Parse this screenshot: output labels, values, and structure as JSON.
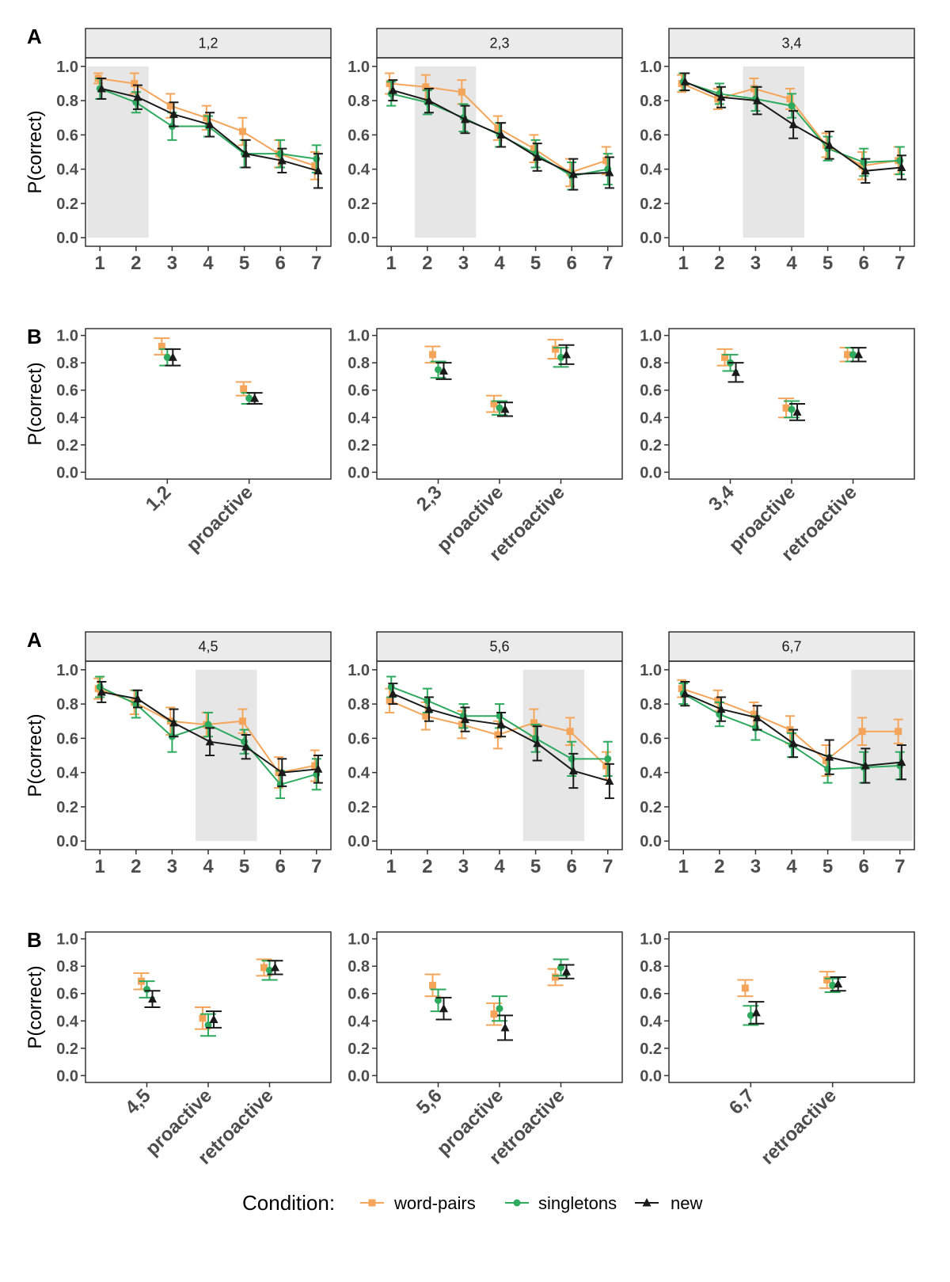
{
  "legend": {
    "title": "Condition:",
    "items": [
      {
        "name": "word-pairs",
        "color": "#F5A55A",
        "shape": "square"
      },
      {
        "name": "singletons",
        "color": "#2DAA5E",
        "shape": "circle"
      },
      {
        "name": "new",
        "color": "#1A1A1A",
        "shape": "triangle"
      }
    ]
  },
  "chart_data": [
    {
      "type": "line",
      "tag": "A",
      "strip": "1,2",
      "ylabel": "P(correct)",
      "x": [
        1,
        2,
        3,
        4,
        5,
        6,
        7
      ],
      "ylim": [
        0,
        1
      ],
      "yticks": [
        "0.0",
        "0.2",
        "0.4",
        "0.6",
        "0.8",
        "1.0"
      ],
      "xticks": [
        "1",
        "2",
        "3",
        "4",
        "5",
        "6",
        "7"
      ],
      "shaded": [
        1,
        2
      ],
      "series": [
        {
          "name": "word-pairs",
          "values": [
            0.93,
            0.9,
            0.77,
            0.7,
            0.62,
            0.49,
            0.42
          ],
          "errors": [
            0.03,
            0.06,
            0.07,
            0.07,
            0.08,
            0.08,
            0.08
          ]
        },
        {
          "name": "singletons",
          "values": [
            0.87,
            0.79,
            0.65,
            0.65,
            0.49,
            0.49,
            0.46
          ],
          "errors": [
            0.06,
            0.06,
            0.08,
            0.06,
            0.08,
            0.08,
            0.08
          ]
        },
        {
          "name": "new",
          "values": [
            0.87,
            0.82,
            0.72,
            0.66,
            0.49,
            0.45,
            0.39
          ],
          "errors": [
            0.06,
            0.07,
            0.07,
            0.07,
            0.08,
            0.07,
            0.1
          ]
        }
      ]
    },
    {
      "type": "line",
      "tag": "",
      "strip": "2,3",
      "ylabel": "",
      "x": [
        1,
        2,
        3,
        4,
        5,
        6,
        7
      ],
      "ylim": [
        0,
        1
      ],
      "yticks": [
        "0.0",
        "0.2",
        "0.4",
        "0.6",
        "0.8",
        "1.0"
      ],
      "xticks": [
        "1",
        "2",
        "3",
        "4",
        "5",
        "6",
        "7"
      ],
      "shaded": [
        2,
        3
      ],
      "series": [
        {
          "name": "word-pairs",
          "values": [
            0.9,
            0.88,
            0.85,
            0.64,
            0.52,
            0.38,
            0.45
          ],
          "errors": [
            0.06,
            0.07,
            0.07,
            0.07,
            0.08,
            0.08,
            0.08
          ]
        },
        {
          "name": "singletons",
          "values": [
            0.84,
            0.79,
            0.7,
            0.6,
            0.49,
            0.36,
            0.4
          ],
          "errors": [
            0.07,
            0.07,
            0.08,
            0.07,
            0.08,
            0.08,
            0.09
          ]
        },
        {
          "name": "new",
          "values": [
            0.86,
            0.8,
            0.69,
            0.6,
            0.47,
            0.37,
            0.38
          ],
          "errors": [
            0.06,
            0.07,
            0.08,
            0.07,
            0.08,
            0.09,
            0.09
          ]
        }
      ]
    },
    {
      "type": "line",
      "tag": "",
      "strip": "3,4",
      "ylabel": "",
      "x": [
        1,
        2,
        3,
        4,
        5,
        6,
        7
      ],
      "ylim": [
        0,
        1
      ],
      "yticks": [
        "0.0",
        "0.2",
        "0.4",
        "0.6",
        "0.8",
        "1.0"
      ],
      "xticks": [
        "1",
        "2",
        "3",
        "4",
        "5",
        "6",
        "7"
      ],
      "shaded": [
        3,
        4
      ],
      "series": [
        {
          "name": "word-pairs",
          "values": [
            0.9,
            0.81,
            0.87,
            0.81,
            0.54,
            0.42,
            0.45
          ],
          "errors": [
            0.05,
            0.06,
            0.06,
            0.06,
            0.07,
            0.08,
            0.08
          ]
        },
        {
          "name": "singletons",
          "values": [
            0.91,
            0.84,
            0.81,
            0.77,
            0.52,
            0.44,
            0.45
          ],
          "errors": [
            0.05,
            0.06,
            0.07,
            0.07,
            0.07,
            0.08,
            0.08
          ]
        },
        {
          "name": "new",
          "values": [
            0.91,
            0.82,
            0.8,
            0.66,
            0.54,
            0.39,
            0.41
          ],
          "errors": [
            0.05,
            0.06,
            0.08,
            0.08,
            0.08,
            0.07,
            0.07
          ]
        }
      ]
    },
    {
      "type": "scatter",
      "tag": "B",
      "ylabel": "P(correct)",
      "ylim": [
        0,
        1
      ],
      "yticks": [
        "0.0",
        "0.2",
        "0.4",
        "0.6",
        "0.8",
        "1.0"
      ],
      "categories": [
        "1,2",
        "proactive"
      ],
      "series": [
        {
          "name": "word-pairs",
          "values": [
            0.92,
            0.61
          ],
          "errors": [
            0.06,
            0.05
          ]
        },
        {
          "name": "singletons",
          "values": [
            0.84,
            0.54
          ],
          "errors": [
            0.06,
            0.04
          ]
        },
        {
          "name": "new",
          "values": [
            0.84,
            0.54
          ],
          "errors": [
            0.06,
            0.04
          ]
        }
      ]
    },
    {
      "type": "scatter",
      "tag": "",
      "ylabel": "",
      "ylim": [
        0,
        1
      ],
      "yticks": [
        "0.0",
        "0.2",
        "0.4",
        "0.6",
        "0.8",
        "1.0"
      ],
      "categories": [
        "2,3",
        "proactive",
        "retroactive"
      ],
      "series": [
        {
          "name": "word-pairs",
          "values": [
            0.86,
            0.5,
            0.9
          ],
          "errors": [
            0.06,
            0.06,
            0.07
          ]
        },
        {
          "name": "singletons",
          "values": [
            0.75,
            0.47,
            0.84
          ],
          "errors": [
            0.06,
            0.05,
            0.07
          ]
        },
        {
          "name": "new",
          "values": [
            0.74,
            0.46,
            0.86
          ],
          "errors": [
            0.06,
            0.05,
            0.07
          ]
        }
      ]
    },
    {
      "type": "scatter",
      "tag": "",
      "ylabel": "",
      "ylim": [
        0,
        1
      ],
      "yticks": [
        "0.0",
        "0.2",
        "0.4",
        "0.6",
        "0.8",
        "1.0"
      ],
      "categories": [
        "3,4",
        "proactive",
        "retroactive"
      ],
      "series": [
        {
          "name": "word-pairs",
          "values": [
            0.84,
            0.47,
            0.86
          ],
          "errors": [
            0.06,
            0.07,
            0.05
          ]
        },
        {
          "name": "singletons",
          "values": [
            0.8,
            0.46,
            0.86
          ],
          "errors": [
            0.06,
            0.06,
            0.05
          ]
        },
        {
          "name": "new",
          "values": [
            0.73,
            0.44,
            0.86
          ],
          "errors": [
            0.07,
            0.06,
            0.05
          ]
        }
      ]
    },
    {
      "type": "line",
      "tag": "A",
      "strip": "4,5",
      "ylabel": "P(correct)",
      "x": [
        1,
        2,
        3,
        4,
        5,
        6,
        7
      ],
      "ylim": [
        0,
        1
      ],
      "yticks": [
        "0.0",
        "0.2",
        "0.4",
        "0.6",
        "0.8",
        "1.0"
      ],
      "xticks": [
        "1",
        "2",
        "3",
        "4",
        "5",
        "6",
        "7"
      ],
      "shaded": [
        4,
        5
      ],
      "series": [
        {
          "name": "word-pairs",
          "values": [
            0.89,
            0.81,
            0.7,
            0.68,
            0.7,
            0.4,
            0.44
          ],
          "errors": [
            0.06,
            0.07,
            0.08,
            0.07,
            0.07,
            0.09,
            0.09
          ]
        },
        {
          "name": "singletons",
          "values": [
            0.9,
            0.8,
            0.61,
            0.68,
            0.58,
            0.33,
            0.39
          ],
          "errors": [
            0.06,
            0.08,
            0.09,
            0.07,
            0.07,
            0.08,
            0.09
          ]
        },
        {
          "name": "new",
          "values": [
            0.87,
            0.83,
            0.69,
            0.58,
            0.55,
            0.4,
            0.42
          ],
          "errors": [
            0.06,
            0.05,
            0.08,
            0.08,
            0.07,
            0.08,
            0.08
          ]
        }
      ]
    },
    {
      "type": "line",
      "tag": "",
      "strip": "5,6",
      "ylabel": "",
      "x": [
        1,
        2,
        3,
        4,
        5,
        6,
        7
      ],
      "ylim": [
        0,
        1
      ],
      "yticks": [
        "0.0",
        "0.2",
        "0.4",
        "0.6",
        "0.8",
        "1.0"
      ],
      "xticks": [
        "1",
        "2",
        "3",
        "4",
        "5",
        "6",
        "7"
      ],
      "shaded": [
        5,
        6
      ],
      "series": [
        {
          "name": "word-pairs",
          "values": [
            0.82,
            0.73,
            0.68,
            0.62,
            0.69,
            0.64,
            0.44
          ],
          "errors": [
            0.07,
            0.08,
            0.08,
            0.08,
            0.08,
            0.08,
            0.08
          ]
        },
        {
          "name": "singletons",
          "values": [
            0.9,
            0.82,
            0.73,
            0.73,
            0.6,
            0.48,
            0.48
          ],
          "errors": [
            0.06,
            0.07,
            0.07,
            0.07,
            0.08,
            0.1,
            0.1
          ]
        },
        {
          "name": "new",
          "values": [
            0.86,
            0.77,
            0.71,
            0.68,
            0.57,
            0.41,
            0.35
          ],
          "errors": [
            0.06,
            0.07,
            0.07,
            0.07,
            0.1,
            0.1,
            0.1
          ]
        }
      ]
    },
    {
      "type": "line",
      "tag": "",
      "strip": "6,7",
      "ylabel": "",
      "x": [
        1,
        2,
        3,
        4,
        5,
        6,
        7
      ],
      "ylim": [
        0,
        1
      ],
      "yticks": [
        "0.0",
        "0.2",
        "0.4",
        "0.6",
        "0.8",
        "1.0"
      ],
      "xticks": [
        "1",
        "2",
        "3",
        "4",
        "5",
        "6",
        "7"
      ],
      "shaded": [
        6,
        7
      ],
      "series": [
        {
          "name": "word-pairs",
          "values": [
            0.89,
            0.82,
            0.74,
            0.65,
            0.47,
            0.64,
            0.64
          ],
          "errors": [
            0.05,
            0.06,
            0.07,
            0.08,
            0.09,
            0.08,
            0.07
          ]
        },
        {
          "name": "singletons",
          "values": [
            0.86,
            0.74,
            0.66,
            0.56,
            0.42,
            0.43,
            0.44
          ],
          "errors": [
            0.06,
            0.07,
            0.07,
            0.07,
            0.08,
            0.09,
            0.08
          ]
        },
        {
          "name": "new",
          "values": [
            0.86,
            0.77,
            0.72,
            0.57,
            0.49,
            0.44,
            0.46
          ],
          "errors": [
            0.07,
            0.07,
            0.07,
            0.08,
            0.1,
            0.1,
            0.1
          ]
        }
      ]
    },
    {
      "type": "scatter",
      "tag": "B",
      "ylabel": "P(correct)",
      "ylim": [
        0,
        1
      ],
      "yticks": [
        "0.0",
        "0.2",
        "0.4",
        "0.6",
        "0.8",
        "1.0"
      ],
      "categories": [
        "4,5",
        "proactive",
        "retroactive"
      ],
      "series": [
        {
          "name": "word-pairs",
          "values": [
            0.69,
            0.42,
            0.79
          ],
          "errors": [
            0.06,
            0.08,
            0.06
          ]
        },
        {
          "name": "singletons",
          "values": [
            0.63,
            0.37,
            0.77
          ],
          "errors": [
            0.06,
            0.08,
            0.07
          ]
        },
        {
          "name": "new",
          "values": [
            0.56,
            0.41,
            0.79
          ],
          "errors": [
            0.06,
            0.06,
            0.05
          ]
        }
      ]
    },
    {
      "type": "scatter",
      "tag": "",
      "ylabel": "",
      "ylim": [
        0,
        1
      ],
      "yticks": [
        "0.0",
        "0.2",
        "0.4",
        "0.6",
        "0.8",
        "1.0"
      ],
      "categories": [
        "5,6",
        "proactive",
        "retroactive"
      ],
      "series": [
        {
          "name": "word-pairs",
          "values": [
            0.66,
            0.45,
            0.72
          ],
          "errors": [
            0.08,
            0.08,
            0.06
          ]
        },
        {
          "name": "singletons",
          "values": [
            0.55,
            0.49,
            0.79
          ],
          "errors": [
            0.08,
            0.09,
            0.06
          ]
        },
        {
          "name": "new",
          "values": [
            0.49,
            0.35,
            0.76
          ],
          "errors": [
            0.08,
            0.09,
            0.05
          ]
        }
      ]
    },
    {
      "type": "scatter",
      "tag": "",
      "ylabel": "",
      "ylim": [
        0,
        1
      ],
      "yticks": [
        "0.0",
        "0.2",
        "0.4",
        "0.6",
        "0.8",
        "1.0"
      ],
      "categories": [
        "6,7",
        "retroactive"
      ],
      "series": [
        {
          "name": "word-pairs",
          "values": [
            0.64,
            0.7
          ],
          "errors": [
            0.06,
            0.06
          ]
        },
        {
          "name": "singletons",
          "values": [
            0.44,
            0.66
          ],
          "errors": [
            0.07,
            0.05
          ]
        },
        {
          "name": "new",
          "values": [
            0.46,
            0.67
          ],
          "errors": [
            0.08,
            0.05
          ]
        }
      ]
    }
  ]
}
